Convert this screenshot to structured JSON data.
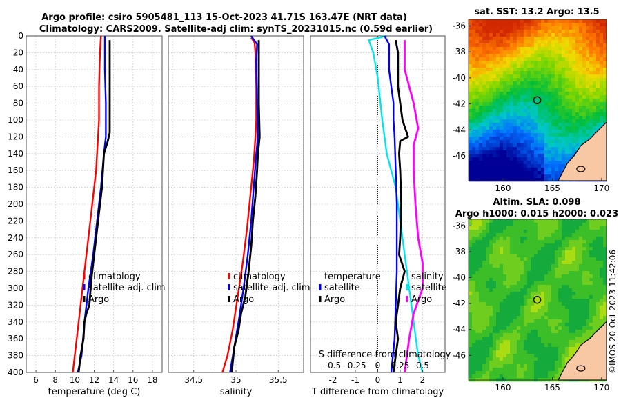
{
  "title": {
    "line1": "Argo profile: csiro 5905481_113 15-Oct-2023 41.71S 163.47E (NRT data)",
    "line2": "Climatology: CARS2009. Satellite-adj clim: synTS_20231015.nc (0.59d earlier)"
  },
  "colors": {
    "climatology": "#ff0000",
    "satellite": "#0000ff",
    "argo": "#000000",
    "cyan": "#00e5ee",
    "magenta": "#ff00ff"
  },
  "chart_data": [
    {
      "type": "line",
      "name": "temperature profile",
      "xlabel": "temperature (deg C)",
      "xlim": [
        5,
        19
      ],
      "xticks": [
        6,
        8,
        10,
        12,
        14,
        16,
        18
      ],
      "ylim": [
        0,
        400
      ],
      "yticks": [
        0,
        20,
        40,
        60,
        80,
        100,
        120,
        140,
        160,
        180,
        200,
        220,
        240,
        260,
        280,
        300,
        320,
        340,
        360,
        380,
        400
      ],
      "grid": true,
      "legend": {
        "position": "lower-right",
        "entries": [
          "climatology",
          "satellite-adj. clim",
          "Argo"
        ]
      },
      "series": [
        {
          "name": "climatology",
          "color": "#ff0000",
          "points": [
            [
              12.7,
              0
            ],
            [
              12.6,
              20
            ],
            [
              12.5,
              60
            ],
            [
              12.5,
              100
            ],
            [
              12.4,
              120
            ],
            [
              12.2,
              160
            ],
            [
              11.8,
              200
            ],
            [
              11.4,
              240
            ],
            [
              11.0,
              280
            ],
            [
              10.6,
              320
            ],
            [
              10.2,
              360
            ],
            [
              9.8,
              400
            ]
          ]
        },
        {
          "name": "satellite-adj. clim",
          "color": "#0000ff",
          "points": [
            [
              13.1,
              0
            ],
            [
              13.1,
              20
            ],
            [
              13.1,
              40
            ],
            [
              13.2,
              80
            ],
            [
              13.2,
              120
            ],
            [
              13.0,
              140
            ],
            [
              12.7,
              180
            ],
            [
              12.3,
              220
            ],
            [
              11.9,
              260
            ],
            [
              11.4,
              300
            ],
            [
              11.0,
              340
            ],
            [
              10.7,
              380
            ],
            [
              10.3,
              400
            ]
          ]
        },
        {
          "name": "Argo",
          "color": "#000000",
          "points": [
            [
              13.6,
              5
            ],
            [
              13.6,
              40
            ],
            [
              13.6,
              80
            ],
            [
              13.6,
              115
            ],
            [
              13.4,
              125
            ],
            [
              13.0,
              140
            ],
            [
              12.8,
              180
            ],
            [
              12.4,
              220
            ],
            [
              12.0,
              260
            ],
            [
              11.7,
              290
            ],
            [
              11.5,
              320
            ],
            [
              11.2,
              330
            ],
            [
              11.0,
              340
            ],
            [
              10.9,
              360
            ],
            [
              10.6,
              380
            ],
            [
              10.4,
              400
            ]
          ]
        }
      ]
    },
    {
      "type": "line",
      "name": "salinity profile",
      "xlabel": "salinity",
      "xlim": [
        34.2,
        35.8
      ],
      "xticks": [
        34.5,
        35,
        35.5
      ],
      "ylim": [
        0,
        400
      ],
      "grid": true,
      "legend": {
        "position": "lower-right",
        "entries": [
          "climatology",
          "satellite-adj. clim",
          "Argo"
        ]
      },
      "series": [
        {
          "name": "climatology",
          "color": "#ff0000",
          "points": [
            [
              35.18,
              2
            ],
            [
              35.22,
              8
            ],
            [
              35.23,
              20
            ],
            [
              35.24,
              60
            ],
            [
              35.24,
              100
            ],
            [
              35.23,
              120
            ],
            [
              35.21,
              150
            ],
            [
              35.17,
              190
            ],
            [
              35.13,
              230
            ],
            [
              35.08,
              270
            ],
            [
              35.02,
              310
            ],
            [
              34.96,
              350
            ],
            [
              34.9,
              380
            ],
            [
              34.84,
              400
            ]
          ]
        },
        {
          "name": "satellite-adj. clim",
          "color": "#0000ff",
          "points": [
            [
              35.18,
              0
            ],
            [
              35.25,
              10
            ],
            [
              35.24,
              30
            ],
            [
              35.25,
              80
            ],
            [
              35.26,
              120
            ],
            [
              35.24,
              140
            ],
            [
              35.21,
              180
            ],
            [
              35.18,
              220
            ],
            [
              35.14,
              260
            ],
            [
              35.09,
              300
            ],
            [
              35.03,
              340
            ],
            [
              34.98,
              370
            ],
            [
              34.93,
              400
            ]
          ]
        },
        {
          "name": "Argo",
          "color": "#000000",
          "points": [
            [
              35.27,
              5
            ],
            [
              35.27,
              40
            ],
            [
              35.27,
              80
            ],
            [
              35.28,
              120
            ],
            [
              35.26,
              140
            ],
            [
              35.25,
              160
            ],
            [
              35.23,
              190
            ],
            [
              35.2,
              220
            ],
            [
              35.18,
              250
            ],
            [
              35.15,
              280
            ],
            [
              35.11,
              310
            ],
            [
              35.06,
              330
            ],
            [
              35.03,
              350
            ],
            [
              34.98,
              370
            ],
            [
              34.95,
              400
            ]
          ]
        }
      ]
    },
    {
      "type": "line",
      "name": "difference from climatology",
      "xlabel": "T difference from climatology",
      "xlabel_top": "S difference from climatology",
      "xlim": [
        -3,
        3
      ],
      "xticks": [
        -2,
        -1,
        0,
        1,
        2
      ],
      "xlim_salinity": [
        -0.75,
        0.75
      ],
      "xticks_salinity": [
        -0.5,
        -0.25,
        0,
        0.25,
        0.5
      ],
      "xticklabels_salinity": [
        "-0.5",
        "-0.25",
        "0",
        "0.25",
        "0.5"
      ],
      "ylim": [
        0,
        400
      ],
      "grid": true,
      "legend": [
        {
          "title": "temperature",
          "entries": [
            "satellite",
            "Argo"
          ]
        },
        {
          "title": "salinity",
          "entries": [
            "satellite",
            "Argo"
          ]
        }
      ],
      "series": [
        {
          "name": "S satellite diff",
          "color": "#00e5ee",
          "points": [
            [
              0.1,
              0
            ],
            [
              -0.1,
              5
            ],
            [
              -0.05,
              20
            ],
            [
              0.0,
              50
            ],
            [
              0.05,
              100
            ],
            [
              0.1,
              140
            ],
            [
              0.2,
              180
            ],
            [
              0.25,
              220
            ],
            [
              0.3,
              260
            ],
            [
              0.35,
              300
            ],
            [
              0.4,
              340
            ],
            [
              0.45,
              380
            ],
            [
              0.5,
              400
            ]
          ]
        },
        {
          "name": "S Argo diff",
          "color": "#ff00ff",
          "points": [
            [
              0.3,
              5
            ],
            [
              0.3,
              40
            ],
            [
              0.4,
              80
            ],
            [
              0.45,
              110
            ],
            [
              0.4,
              130
            ],
            [
              0.4,
              160
            ],
            [
              0.42,
              200
            ],
            [
              0.45,
              240
            ],
            [
              0.5,
              270
            ],
            [
              0.5,
              300
            ],
            [
              0.4,
              330
            ],
            [
              0.35,
              360
            ],
            [
              0.3,
              400
            ]
          ]
        },
        {
          "name": "T satellite diff",
          "color": "#0000ff",
          "points": [
            [
              0.3,
              0
            ],
            [
              0.5,
              10
            ],
            [
              0.5,
              40
            ],
            [
              0.6,
              60
            ],
            [
              0.7,
              80
            ],
            [
              0.7,
              100
            ],
            [
              0.75,
              120
            ],
            [
              0.8,
              160
            ],
            [
              0.85,
              200
            ],
            [
              0.85,
              240
            ],
            [
              0.85,
              280
            ],
            [
              0.8,
              320
            ],
            [
              0.75,
              360
            ],
            [
              0.6,
              400
            ]
          ]
        },
        {
          "name": "T Argo diff",
          "color": "#000000",
          "points": [
            [
              0.8,
              5
            ],
            [
              0.9,
              20
            ],
            [
              0.9,
              40
            ],
            [
              0.9,
              60
            ],
            [
              1.0,
              80
            ],
            [
              1.1,
              100
            ],
            [
              1.35,
              120
            ],
            [
              1.0,
              125
            ],
            [
              0.95,
              140
            ],
            [
              1.0,
              160
            ],
            [
              1.05,
              200
            ],
            [
              1.0,
              240
            ],
            [
              0.95,
              260
            ],
            [
              1.2,
              280
            ],
            [
              1.0,
              300
            ],
            [
              0.9,
              320
            ],
            [
              0.8,
              340
            ],
            [
              0.9,
              360
            ],
            [
              0.8,
              380
            ],
            [
              0.7,
              400
            ]
          ]
        }
      ]
    }
  ],
  "maps": {
    "sst": {
      "title": "sat. SST: 13.2 Argo: 13.5",
      "xticks": [
        "160",
        "165",
        "170"
      ],
      "yticks": [
        "-36",
        "-38",
        "-40",
        "-42",
        "-44",
        "-46"
      ],
      "lon_range": [
        156.5,
        170.5
      ],
      "lat_range": [
        -35.5,
        -47.9
      ],
      "marker": {
        "lon": 163.47,
        "lat": -41.71
      }
    },
    "sla": {
      "title1": "Altim. SLA: 0.098",
      "title2": "Argo h1000: 0.015 h2000: 0.023",
      "xticks": [
        "160",
        "165",
        "170"
      ],
      "yticks": [
        "-36",
        "-38",
        "-40",
        "-42",
        "-44",
        "-46"
      ],
      "lon_range": [
        156.5,
        170.5
      ],
      "lat_range": [
        -35.5,
        -47.9
      ],
      "marker": {
        "lon": 163.47,
        "lat": -41.71
      }
    }
  },
  "credit": "©IMOS 20-Oct-2023 11:42:06"
}
